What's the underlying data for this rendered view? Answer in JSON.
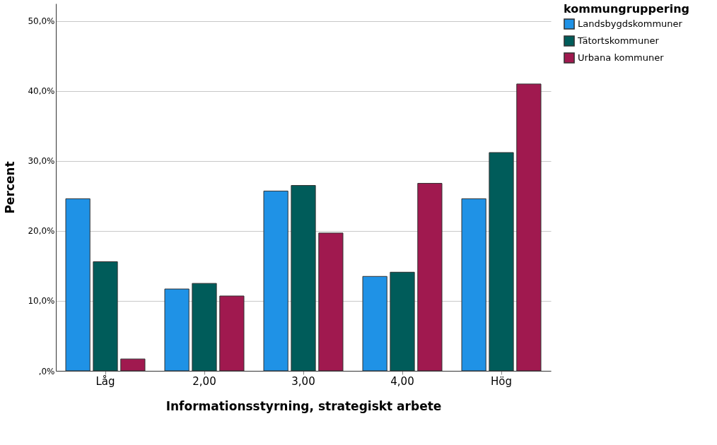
{
  "chart_data": {
    "type": "bar",
    "xlabel": "Informationsstyrning, strategiskt arbete",
    "ylabel": "Percent",
    "legend_title": "kommungruppering",
    "categories": [
      "Låg",
      "2,00",
      "3,00",
      "4,00",
      "Hög"
    ],
    "series": [
      {
        "name": "Landsbygdskommuner",
        "color": "#1f92e6",
        "values": [
          24.6,
          11.7,
          25.7,
          13.5,
          24.6
        ]
      },
      {
        "name": "Tätortskommuner",
        "color": "#005c5a",
        "values": [
          15.6,
          12.5,
          26.5,
          14.1,
          31.2
        ]
      },
      {
        "name": "Urbana kommuner",
        "color": "#a0194f",
        "values": [
          1.7,
          10.7,
          19.7,
          26.8,
          41.0
        ]
      }
    ],
    "ylim": [
      0,
      52.5
    ],
    "yticks": [
      {
        "value": 0,
        "label": ",0%"
      },
      {
        "value": 10,
        "label": "10,0%"
      },
      {
        "value": 20,
        "label": "20,0%"
      },
      {
        "value": 30,
        "label": "30,0%"
      },
      {
        "value": 40,
        "label": "40,0%"
      },
      {
        "value": 50,
        "label": "50,0%"
      }
    ],
    "grid": "y",
    "legend": "top right"
  }
}
